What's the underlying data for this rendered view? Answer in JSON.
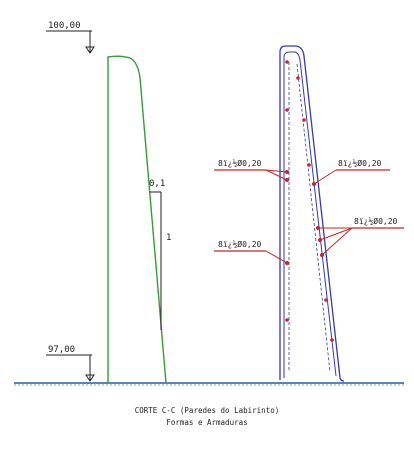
{
  "drawing": {
    "elevation_top": "100,00",
    "elevation_bottom": "97,00",
    "dimension_run": "0,1",
    "dimension_rise": "1",
    "rebar_labels": [
      "8ï¿½Ø0,20",
      "8ï¿½Ø0,20",
      "8ï¿½Ø0,20",
      "8ï¿½Ø0,20"
    ],
    "caption_line1": "CORTE C-C (Paredes do Labirinto)",
    "caption_line2": "Formas e Armaduras"
  },
  "colors": {
    "section_outline": "#3a9a3a",
    "rebar_outline": "#3a3aa0",
    "rebar_marks": "#c02a2a",
    "ground": "#2a5aa0",
    "annotation": "#222222"
  }
}
